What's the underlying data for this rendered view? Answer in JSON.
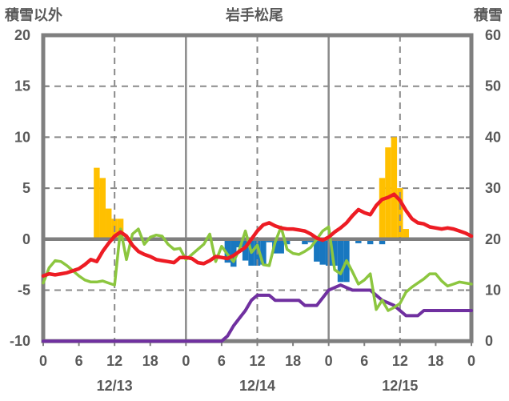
{
  "header": {
    "left_axis_title": "積雪以外",
    "title": "岩手松尾",
    "right_axis_title": "積雪"
  },
  "chart_data": {
    "type": "bar",
    "subtype": "combo-bar-line-dual-axis",
    "title": "岩手松尾",
    "left_axis": {
      "title": "積雪以外",
      "min": -10,
      "max": 20
    },
    "right_axis": {
      "title": "積雪",
      "min": 0,
      "max": 60
    },
    "axis_ticks": [
      {
        "value": 20,
        "left_label": "20",
        "right_label": "60"
      },
      {
        "value": 15,
        "left_label": "15",
        "right_label": "50"
      },
      {
        "value": 10,
        "left_label": "10",
        "right_label": "40"
      },
      {
        "value": 5,
        "left_label": "5",
        "right_label": "30"
      },
      {
        "value": 0,
        "left_label": "0",
        "right_label": "20"
      },
      {
        "value": -5,
        "left_label": "-5",
        "right_label": "10"
      },
      {
        "value": -10,
        "left_label": "-10",
        "right_label": "0"
      }
    ],
    "x": {
      "total_hours": 72,
      "hour_ticks": [
        {
          "hour": 0,
          "label": "0"
        },
        {
          "hour": 6,
          "label": "6"
        },
        {
          "hour": 12,
          "label": "12"
        },
        {
          "hour": 18,
          "label": "18"
        },
        {
          "hour": 24,
          "label": "0"
        },
        {
          "hour": 30,
          "label": "6"
        },
        {
          "hour": 36,
          "label": "12"
        },
        {
          "hour": 42,
          "label": "18"
        },
        {
          "hour": 48,
          "label": "0"
        },
        {
          "hour": 54,
          "label": "6"
        },
        {
          "hour": 60,
          "label": "12"
        },
        {
          "hour": 66,
          "label": "18"
        },
        {
          "hour": 72,
          "label": "0"
        }
      ],
      "date_labels": [
        {
          "center_hour": 12,
          "label": "12/13"
        },
        {
          "center_hour": 36,
          "label": "12/14"
        },
        {
          "center_hour": 60,
          "label": "12/15"
        }
      ]
    },
    "grid": {
      "horizontal_dashed_values": [
        15,
        10,
        5,
        -5
      ],
      "vertical_dashed_hours": [
        12,
        36,
        60
      ],
      "vertical_solid_hours": [
        24,
        48
      ]
    },
    "colors": {
      "orange_bars": "#FFC000",
      "blue_bars": "#1877C0",
      "red_line": "#ED1C24",
      "green_line": "#8CC63F",
      "purple_line": "#7030A0",
      "axis": "#7F7F7F",
      "grid": "#8A8A8A",
      "text": "#595959"
    },
    "series": {
      "orange_bars": {
        "axis": "left",
        "points": [
          [
            9,
            7
          ],
          [
            10,
            6
          ],
          [
            11,
            3
          ],
          [
            12,
            2
          ],
          [
            13,
            2
          ],
          [
            57,
            6
          ],
          [
            58,
            9
          ],
          [
            59,
            10
          ],
          [
            60,
            5
          ],
          [
            61,
            1
          ]
        ]
      },
      "blue_bars": {
        "axis": "left",
        "points": [
          [
            31,
            -2.3
          ],
          [
            32,
            -2.7
          ],
          [
            33,
            -0.8
          ],
          [
            34,
            -2.1
          ],
          [
            35,
            -2.6
          ],
          [
            36,
            -2.6
          ],
          [
            37,
            -2.5
          ],
          [
            38,
            -0.3
          ],
          [
            39,
            -1.4
          ],
          [
            40,
            -1.4
          ],
          [
            41,
            -0.5
          ],
          [
            44,
            -0.5
          ],
          [
            45,
            -0.3
          ],
          [
            46,
            -2.2
          ],
          [
            47,
            -2.5
          ],
          [
            48,
            -2.6
          ],
          [
            49,
            -2.6
          ],
          [
            50,
            -4.2
          ],
          [
            51,
            -4.2
          ],
          [
            53,
            -0.4
          ],
          [
            55,
            -0.5
          ],
          [
            57,
            -0.5
          ]
        ]
      },
      "red_line": {
        "axis": "left",
        "values": [
          -3.6,
          -3.4,
          -3.5,
          -3.4,
          -3.3,
          -3.1,
          -2.9,
          -2.5,
          -2.0,
          -2.2,
          -1.2,
          -0.4,
          0.3,
          0.7,
          0.3,
          -0.6,
          -1.2,
          -1.5,
          -1.7,
          -2.0,
          -2.1,
          -2.2,
          -2.3,
          -1.8,
          -1.8,
          -1.9,
          -2.3,
          -2.4,
          -2.1,
          -1.7,
          -1.8,
          -1.9,
          -1.6,
          -1.2,
          -0.8,
          0.0,
          0.8,
          1.4,
          1.6,
          1.3,
          1.1,
          1.0,
          1.0,
          0.9,
          0.8,
          0.5,
          0.1,
          -0.1,
          0.2,
          0.7,
          1.1,
          1.6,
          2.3,
          2.9,
          2.6,
          2.4,
          3.3,
          3.9,
          4.1,
          4.4,
          3.8,
          2.8,
          2.0,
          1.6,
          1.5,
          1.2,
          1.1,
          1.0,
          1.1,
          1.0,
          0.8,
          0.6,
          0.3
        ]
      },
      "green_line": {
        "axis": "left",
        "values": [
          -4.3,
          -2.8,
          -2.1,
          -2.2,
          -2.6,
          -3.1,
          -3.6,
          -4.0,
          -4.2,
          -4.2,
          -4.1,
          -4.3,
          -4.5,
          1.0,
          -2.0,
          0.5,
          1.0,
          -0.5,
          0.2,
          0.4,
          0.3,
          -0.5,
          -1.0,
          -0.9,
          -2.0,
          -1.5,
          -1.0,
          -0.5,
          0.5,
          -2.2,
          -0.7,
          -1.5,
          -2.2,
          -1.0,
          0.8,
          -1.3,
          -0.6,
          -2.5,
          -2.6,
          -0.3,
          1.2,
          -1.0,
          -1.4,
          -1.5,
          -1.2,
          -0.8,
          0.0,
          0.8,
          1.2,
          -3.0,
          -3.4,
          -2.1,
          -3.2,
          -4.4,
          -4.0,
          -3.4,
          -6.9,
          -6.0,
          -7.0,
          -6.7,
          -6.3,
          -5.2,
          -4.7,
          -4.3,
          -3.9,
          -3.4,
          -3.4,
          -4.1,
          -4.6,
          -4.4,
          -4.2,
          -4.3,
          -4.4
        ]
      },
      "purple_line": {
        "axis": "right",
        "values": [
          0,
          0,
          0,
          0,
          0,
          0,
          0,
          0,
          0,
          0,
          0,
          0,
          0,
          0,
          0,
          0,
          0,
          0,
          0,
          0,
          0,
          0,
          0,
          0,
          0,
          0,
          0,
          0,
          0,
          0,
          0,
          1,
          3,
          4.5,
          6,
          8,
          9,
          9,
          9,
          8,
          8,
          8,
          8,
          8,
          7,
          7,
          7,
          8.5,
          10,
          10.5,
          11,
          10.5,
          10,
          10,
          10,
          10,
          9,
          8,
          7.5,
          7,
          6,
          5,
          5,
          5,
          6,
          6,
          6,
          6,
          6,
          6,
          6,
          6,
          6
        ]
      }
    }
  }
}
